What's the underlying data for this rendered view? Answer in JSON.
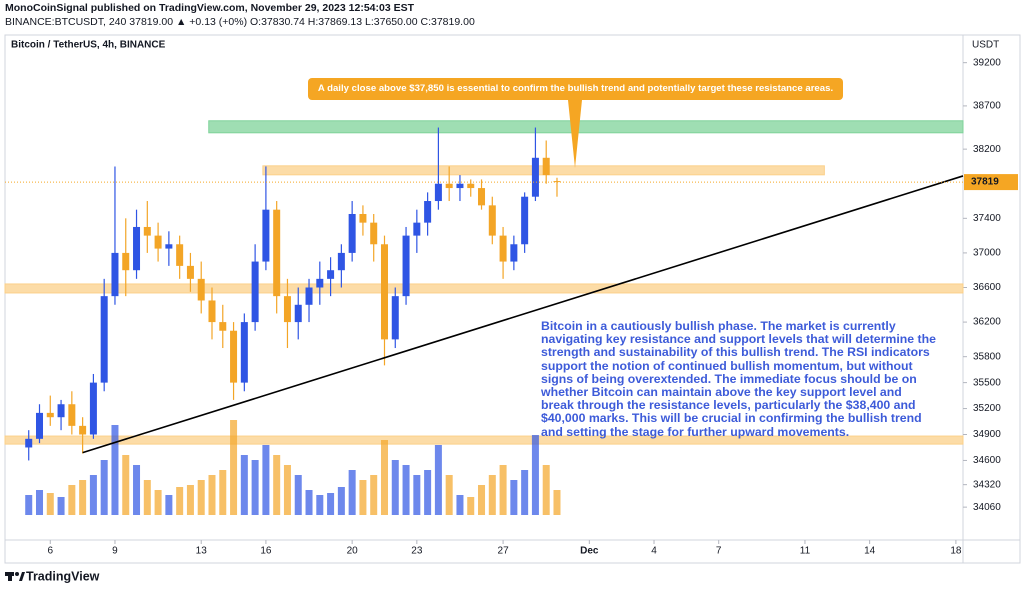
{
  "header": {
    "publisher": "MonoCoinSignal published on TradingView.com, November 29, 2023 12:54:03 EST",
    "symbol_line": "BINANCE:BTCUSDT, 240  37819.00 ▲ +0.13 (+0%)  O:37830.74  H:37869.13  L:37650.00  C:37819.00"
  },
  "footer": {
    "logo": "TradingView"
  },
  "chart_data": {
    "type": "candlestick",
    "title": "Bitcoin / TetherUS, 4h, BINANCE",
    "y_axis_label": "USDT",
    "up_color": "#2f55e4",
    "down_color": "#f3a526",
    "x": [
      5.0,
      5.5,
      6.0,
      6.5,
      7.0,
      7.5,
      8.0,
      8.5,
      9.0,
      9.5,
      10.0,
      10.5,
      11.0,
      11.5,
      12.0,
      12.5,
      13.0,
      13.5,
      14.0,
      14.5,
      15.0,
      15.5,
      16.0,
      16.5,
      17.0,
      17.5,
      18.0,
      18.5,
      19.0,
      19.5,
      20.0,
      20.5,
      21.0,
      21.5,
      22.0,
      22.5,
      23.0,
      23.5,
      24.0,
      24.5,
      25.0,
      25.5,
      26.0,
      26.5,
      27.0,
      27.5,
      28.0,
      28.5,
      29.0,
      29.5
    ],
    "open": [
      34750,
      34850,
      35150,
      35100,
      35250,
      35000,
      34900,
      35500,
      36500,
      37000,
      36800,
      37300,
      37200,
      37050,
      37100,
      36850,
      36700,
      36450,
      36200,
      36100,
      35500,
      36200,
      36900,
      37500,
      36500,
      36200,
      36400,
      36600,
      36700,
      36800,
      37000,
      37450,
      37350,
      37100,
      36000,
      36500,
      37200,
      37350,
      37600,
      37800,
      37750,
      37800,
      37750,
      37550,
      37200,
      36900,
      37100,
      37650,
      38100,
      37830.74
    ],
    "high": [
      34950,
      35250,
      35350,
      35300,
      35400,
      35100,
      35600,
      36700,
      38000,
      37400,
      37500,
      37600,
      37350,
      37250,
      37200,
      37000,
      36900,
      36600,
      36400,
      36200,
      36300,
      37100,
      38000,
      37600,
      36700,
      36600,
      36700,
      36900,
      36950,
      37100,
      37600,
      37550,
      37450,
      37200,
      36600,
      37300,
      37500,
      37700,
      38450,
      38000,
      37900,
      37850,
      37850,
      37650,
      37300,
      37200,
      37700,
      38450,
      38300,
      37869.13
    ],
    "low": [
      34600,
      34800,
      35000,
      34950,
      34900,
      34680,
      34850,
      35400,
      36400,
      36500,
      36700,
      37000,
      36900,
      36850,
      36700,
      36550,
      36300,
      36000,
      35900,
      35300,
      35400,
      36100,
      36800,
      36300,
      35900,
      36000,
      36200,
      36400,
      36500,
      36600,
      36900,
      37200,
      36900,
      35700,
      35900,
      36400,
      37000,
      37200,
      37500,
      37600,
      37600,
      37650,
      37500,
      37100,
      36700,
      36800,
      37000,
      37600,
      37800,
      37650
    ],
    "close": [
      34850,
      35150,
      35100,
      35250,
      35000,
      34900,
      35500,
      36500,
      37000,
      36800,
      37300,
      37200,
      37050,
      37100,
      36850,
      36700,
      36450,
      36200,
      36100,
      35500,
      36200,
      36900,
      37500,
      36500,
      36200,
      36400,
      36600,
      36700,
      36800,
      37000,
      37450,
      37350,
      37100,
      36000,
      36500,
      37200,
      37350,
      37600,
      37800,
      37750,
      37800,
      37750,
      37550,
      37200,
      36900,
      37100,
      37650,
      38100,
      37900,
      37819
    ],
    "volume": [
      20,
      25,
      22,
      18,
      30,
      35,
      40,
      55,
      90,
      60,
      50,
      35,
      25,
      20,
      28,
      30,
      35,
      40,
      45,
      95,
      60,
      55,
      70,
      60,
      50,
      40,
      25,
      20,
      22,
      28,
      45,
      35,
      40,
      75,
      55,
      50,
      40,
      45,
      70,
      40,
      20,
      18,
      30,
      40,
      50,
      35,
      45,
      80,
      50,
      25
    ],
    "xlim": [
      3.9,
      48.33
    ],
    "ylim": [
      33680,
      39520
    ],
    "y3lim": [
      0,
      100
    ],
    "xticks": [
      6,
      9,
      13,
      16,
      20,
      23,
      27,
      {
        "value": 31,
        "label": "Dec"
      },
      {
        "value": 34,
        "label": "4"
      },
      {
        "value": 37,
        "label": "7"
      },
      {
        "value": 41,
        "label": "11"
      },
      {
        "value": 44,
        "label": "14"
      },
      {
        "value": 48,
        "label": "18"
      }
    ],
    "yticks": [
      39200,
      38700,
      38200,
      37400,
      37000,
      36600,
      36200,
      35800,
      35500,
      35200,
      34900,
      34600,
      34320,
      34060
    ],
    "last_price": 37819,
    "zones": [
      {
        "color": "#7fd39a",
        "low": 38389,
        "high": 38528,
        "x0": 13.35,
        "x1": 48.33
      },
      {
        "color": "#fbd08a",
        "low": 37903,
        "high": 38007,
        "x0": 15.86,
        "x1": 41.9
      },
      {
        "color": "#fbd08a",
        "low": 36537,
        "high": 36641,
        "x0": 3.9,
        "x1": 48.33
      },
      {
        "color": "#fbd08a",
        "low": 34789,
        "high": 34882,
        "x0": 3.9,
        "x1": 48.33
      }
    ],
    "trendline": {
      "x": [
        7.5,
        48.33
      ],
      "y": [
        34690,
        37890
      ]
    },
    "callout": "A daily close above $37,850 is essential to confirm the bullish trend and potentially target these resistance areas.",
    "analysis": "Bitcoin in a cautiously bullish phase. The market is currently navigating key resistance and support levels that will determine the strength and sustainability of this bullish trend. The RSI indicators support the notion of continued bullish momentum, but without signs of being overextended. The immediate focus should be on whether Bitcoin can maintain above the key support level and break through the resistance levels, particularly the $38,400 and $40,000 marks. This will be crucial in confirming the bullish trend and setting the stage for further upward movements."
  }
}
